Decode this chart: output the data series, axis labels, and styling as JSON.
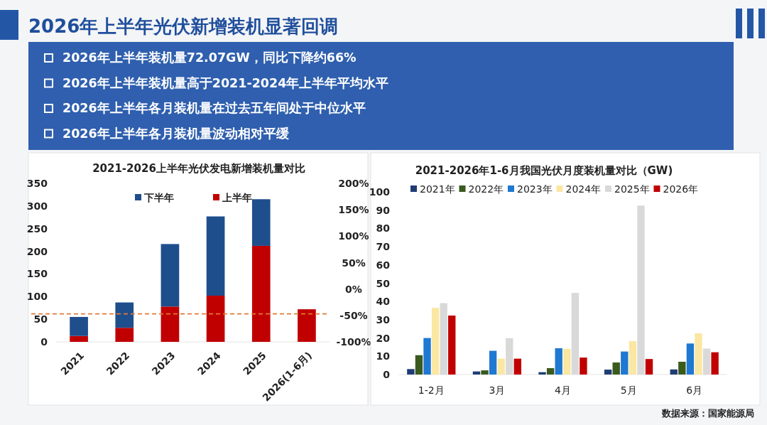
{
  "chart_data": [
    {
      "type": "other",
      "title": "2026年上半年光伏新增装机显著回调",
      "annotations": [
        "2026年上半年装机量72.07GW，同比下降约66%",
        "2026年上半年装机量高于2021-2024年上半年平均水平",
        "2026年上半年各月装机量在过去五年间处于中位水平",
        "2026年上半年各月装机量波动相对平缓"
      ]
    },
    {
      "type": "bar",
      "title": "2021-2026上半年光伏发电新增装机量对比",
      "stacked": true,
      "legend": "top",
      "categories": [
        "2021",
        "2022",
        "2023",
        "2024",
        "2025",
        "2026(1-6月)"
      ],
      "series": [
        {
          "name": "上半年",
          "color": "#c00000",
          "values": [
            13,
            31,
            78,
            102,
            212,
            72
          ]
        },
        {
          "name": "下半年",
          "color": "#1f4e8c",
          "values": [
            42,
            56,
            138,
            175,
            103,
            null
          ]
        }
      ],
      "ylim": [
        0,
        350
      ],
      "yticks": [
        0,
        50,
        100,
        150,
        200,
        250,
        300,
        350
      ],
      "y2lim": [
        -100,
        200
      ],
      "y2ticks": [
        {
          "value": -100,
          "label": "-100%"
        },
        {
          "value": -50,
          "label": "-50%"
        },
        {
          "value": 0,
          "label": "0%"
        },
        {
          "value": 50,
          "label": "50%"
        },
        {
          "value": 100,
          "label": "100%"
        },
        {
          "value": 150,
          "label": "150%"
        },
        {
          "value": 200,
          "label": "200%"
        }
      ],
      "ref_lines": [
        {
          "axis": "y2",
          "value": -47,
          "color": "#e07b39",
          "line_style": "dashed"
        }
      ]
    },
    {
      "type": "bar",
      "title": "2021-2026年1-6月我国光伏月度装机量对比（GW)",
      "legend": "top",
      "categories": [
        "1-2月",
        "3月",
        "4月",
        "5月",
        "6月"
      ],
      "series": [
        {
          "name": "2021年",
          "color": "#1f3c74",
          "values": [
            3.0,
            1.7,
            1.3,
            2.7,
            2.8
          ]
        },
        {
          "name": "2022年",
          "color": "#3a5a1e",
          "values": [
            10.6,
            2.3,
            3.5,
            6.6,
            7.0
          ]
        },
        {
          "name": "2023年",
          "color": "#1f78d1",
          "values": [
            20.0,
            13.0,
            14.4,
            12.6,
            17.0
          ]
        },
        {
          "name": "2024年",
          "color": "#fbe7a1",
          "values": [
            36.5,
            8.7,
            14.1,
            18.3,
            22.6
          ]
        },
        {
          "name": "2025年",
          "color": "#d9d9d9",
          "values": [
            39.1,
            19.9,
            44.7,
            92.5,
            14.2
          ]
        },
        {
          "name": "2026年",
          "color": "#c00000",
          "values": [
            32.3,
            8.7,
            9.3,
            8.5,
            12.2
          ]
        }
      ],
      "ylim": [
        0,
        100
      ],
      "yticks": [
        0,
        10,
        20,
        30,
        40,
        50,
        60,
        70,
        80,
        90,
        100
      ],
      "annotations": [
        "数据来源：国家能源局"
      ]
    }
  ]
}
